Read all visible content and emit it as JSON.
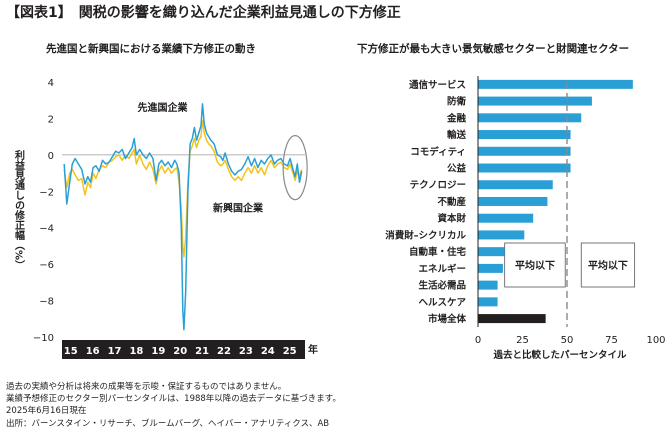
{
  "figure_title": "【図表1】　関税の影響を織り込んだ企業利益見通しの下方修正",
  "footnotes": [
    "過去の実績や分析は将来の成果等を示唆・保証するものではありません。",
    "業績予想修正のセクター別パーセンタイルは、1988年以降の過去データに基づきます。",
    "2025年6月16日現在",
    "出所：バーンスタイン・リサーチ、ブルームバーグ、ヘイバー・アナリティクス、AB"
  ],
  "colors": {
    "developed": "#2a9fd6",
    "emerging": "#f5c21a",
    "bar": "#2a9fd6",
    "bar_total": "#231f20",
    "axis_band": "#231f20",
    "ellipse": "#8a8a8a"
  },
  "chart_data": [
    {
      "type": "line",
      "title": "先進国と新興国における業績下方修正の動き",
      "ylabel": "利益見通しの修正幅（%）",
      "xlabel": "年",
      "ylim": [
        -10,
        4
      ],
      "yticks": [
        "4",
        "2",
        "0",
        "−2",
        "−4",
        "−6",
        "−8",
        "−10"
      ],
      "xlim": [
        2014.7,
        2025.8
      ],
      "x_tick_labels": [
        "15",
        "16",
        "17",
        "18",
        "19",
        "20",
        "21",
        "22",
        "23",
        "24",
        "25"
      ],
      "series": [
        {
          "name": "先進国企業",
          "color_key": "developed",
          "points": [
            [
              2014.8,
              -0.5
            ],
            [
              2014.92,
              -2.7
            ],
            [
              2015.05,
              -1.5
            ],
            [
              2015.17,
              -0.5
            ],
            [
              2015.3,
              -0.2
            ],
            [
              2015.45,
              -0.5
            ],
            [
              2015.6,
              -0.8
            ],
            [
              2015.75,
              -1.6
            ],
            [
              2015.88,
              -1.2
            ],
            [
              2016.0,
              -1.5
            ],
            [
              2016.12,
              -0.7
            ],
            [
              2016.25,
              -0.6
            ],
            [
              2016.4,
              -0.9
            ],
            [
              2016.55,
              -0.3
            ],
            [
              2016.7,
              -0.5
            ],
            [
              2016.85,
              -0.4
            ],
            [
              2017.0,
              -0.1
            ],
            [
              2017.15,
              0.2
            ],
            [
              2017.3,
              0.1
            ],
            [
              2017.45,
              0.3
            ],
            [
              2017.6,
              -0.2
            ],
            [
              2017.75,
              0.1
            ],
            [
              2017.9,
              0.4
            ],
            [
              2018.0,
              0.9
            ],
            [
              2018.1,
              0.0
            ],
            [
              2018.25,
              0.3
            ],
            [
              2018.4,
              0.0
            ],
            [
              2018.55,
              -0.2
            ],
            [
              2018.7,
              0.1
            ],
            [
              2018.85,
              -0.2
            ],
            [
              2019.0,
              -1.4
            ],
            [
              2019.12,
              -0.5
            ],
            [
              2019.25,
              -0.3
            ],
            [
              2019.4,
              -0.6
            ],
            [
              2019.55,
              -0.4
            ],
            [
              2019.7,
              -0.7
            ],
            [
              2019.85,
              -0.3
            ],
            [
              2019.95,
              -0.5
            ],
            [
              2020.05,
              -1.0
            ],
            [
              2020.15,
              -4.0
            ],
            [
              2020.22,
              -8.5
            ],
            [
              2020.27,
              -9.6
            ],
            [
              2020.35,
              -7.5
            ],
            [
              2020.45,
              -2.0
            ],
            [
              2020.55,
              0.6
            ],
            [
              2020.65,
              0.9
            ],
            [
              2020.75,
              1.5
            ],
            [
              2020.85,
              0.8
            ],
            [
              2020.95,
              1.2
            ],
            [
              2021.05,
              1.6
            ],
            [
              2021.12,
              2.8
            ],
            [
              2021.2,
              1.7
            ],
            [
              2021.3,
              1.2
            ],
            [
              2021.4,
              1.0
            ],
            [
              2021.5,
              0.8
            ],
            [
              2021.65,
              0.6
            ],
            [
              2021.8,
              0.0
            ],
            [
              2021.95,
              -0.1
            ],
            [
              2022.05,
              -0.3
            ],
            [
              2022.15,
              0.1
            ],
            [
              2022.3,
              -0.5
            ],
            [
              2022.45,
              -0.9
            ],
            [
              2022.6,
              -1.1
            ],
            [
              2022.75,
              -0.9
            ],
            [
              2022.9,
              -0.8
            ],
            [
              2023.05,
              -0.5
            ],
            [
              2023.2,
              -0.1
            ],
            [
              2023.35,
              -0.6
            ],
            [
              2023.5,
              -0.2
            ],
            [
              2023.65,
              -0.7
            ],
            [
              2023.8,
              -0.3
            ],
            [
              2023.95,
              -0.5
            ],
            [
              2024.1,
              -0.2
            ],
            [
              2024.25,
              0.0
            ],
            [
              2024.4,
              -0.5
            ],
            [
              2024.55,
              -0.3
            ],
            [
              2024.7,
              -0.2
            ],
            [
              2024.85,
              -0.5
            ],
            [
              2025.0,
              -0.6
            ],
            [
              2025.12,
              -0.2
            ],
            [
              2025.25,
              -0.8
            ],
            [
              2025.35,
              -1.2
            ],
            [
              2025.45,
              -0.5
            ],
            [
              2025.55,
              -1.5
            ],
            [
              2025.65,
              -0.9
            ]
          ]
        },
        {
          "name": "新興国企業",
          "color_key": "emerging",
          "points": [
            [
              2014.8,
              -0.8
            ],
            [
              2014.92,
              -1.8
            ],
            [
              2015.05,
              -1.0
            ],
            [
              2015.17,
              -0.8
            ],
            [
              2015.3,
              -1.1
            ],
            [
              2015.45,
              -1.4
            ],
            [
              2015.6,
              -1.3
            ],
            [
              2015.75,
              -2.2
            ],
            [
              2015.88,
              -1.5
            ],
            [
              2016.0,
              -1.8
            ],
            [
              2016.12,
              -1.0
            ],
            [
              2016.25,
              -1.3
            ],
            [
              2016.4,
              -0.8
            ],
            [
              2016.55,
              -0.6
            ],
            [
              2016.7,
              -0.7
            ],
            [
              2016.85,
              -0.4
            ],
            [
              2017.0,
              -0.3
            ],
            [
              2017.15,
              -0.1
            ],
            [
              2017.3,
              0.0
            ],
            [
              2017.45,
              -0.3
            ],
            [
              2017.6,
              0.0
            ],
            [
              2017.75,
              -0.2
            ],
            [
              2017.9,
              0.1
            ],
            [
              2018.0,
              0.3
            ],
            [
              2018.1,
              -0.5
            ],
            [
              2018.25,
              0.0
            ],
            [
              2018.4,
              -0.5
            ],
            [
              2018.55,
              -0.8
            ],
            [
              2018.7,
              -0.4
            ],
            [
              2018.85,
              -0.8
            ],
            [
              2019.0,
              -1.6
            ],
            [
              2019.12,
              -0.9
            ],
            [
              2019.25,
              -0.6
            ],
            [
              2019.4,
              -1.0
            ],
            [
              2019.55,
              -0.7
            ],
            [
              2019.7,
              -1.0
            ],
            [
              2019.85,
              -0.8
            ],
            [
              2019.95,
              -0.7
            ],
            [
              2020.05,
              -1.5
            ],
            [
              2020.15,
              -3.0
            ],
            [
              2020.22,
              -5.0
            ],
            [
              2020.27,
              -5.6
            ],
            [
              2020.35,
              -4.5
            ],
            [
              2020.45,
              -1.5
            ],
            [
              2020.55,
              0.2
            ],
            [
              2020.65,
              0.5
            ],
            [
              2020.75,
              0.9
            ],
            [
              2020.85,
              0.4
            ],
            [
              2020.95,
              0.8
            ],
            [
              2021.05,
              1.0
            ],
            [
              2021.12,
              1.9
            ],
            [
              2021.2,
              1.2
            ],
            [
              2021.3,
              0.8
            ],
            [
              2021.4,
              0.6
            ],
            [
              2021.5,
              0.5
            ],
            [
              2021.65,
              0.2
            ],
            [
              2021.8,
              -0.4
            ],
            [
              2021.95,
              -0.6
            ],
            [
              2022.05,
              -0.5
            ],
            [
              2022.15,
              -0.3
            ],
            [
              2022.3,
              -0.8
            ],
            [
              2022.45,
              -1.2
            ],
            [
              2022.6,
              -1.4
            ],
            [
              2022.75,
              -1.2
            ],
            [
              2022.9,
              -1.4
            ],
            [
              2023.05,
              -1.0
            ],
            [
              2023.2,
              -0.7
            ],
            [
              2023.35,
              -1.0
            ],
            [
              2023.5,
              -0.6
            ],
            [
              2023.65,
              -1.0
            ],
            [
              2023.8,
              -0.7
            ],
            [
              2023.95,
              -1.1
            ],
            [
              2024.1,
              -0.6
            ],
            [
              2024.25,
              -0.3
            ],
            [
              2024.4,
              -0.7
            ],
            [
              2024.55,
              -0.5
            ],
            [
              2024.7,
              -0.4
            ],
            [
              2024.85,
              -0.7
            ],
            [
              2025.0,
              -0.8
            ],
            [
              2025.12,
              -0.5
            ],
            [
              2025.25,
              -1.0
            ],
            [
              2025.35,
              -1.4
            ],
            [
              2025.45,
              -0.9
            ],
            [
              2025.55,
              -1.2
            ],
            [
              2025.65,
              -0.8
            ]
          ]
        }
      ],
      "annotations": [
        {
          "text": "先進国企業",
          "series": 0
        },
        {
          "text": "新興国企業",
          "series": 1
        }
      ],
      "highlight": "ellipse around latest values (2025)"
    },
    {
      "type": "bar",
      "orientation": "horizontal",
      "title": "下方修正が最も大きい景気敏感セクターと財関連セクター",
      "xlabel": "過去と比較したパーセンタイル",
      "xlim": [
        0,
        100
      ],
      "xticks": [
        0,
        25,
        50,
        75,
        100
      ],
      "reference_line": 50,
      "categories": [
        "通信サービス",
        "防衛",
        "金融",
        "輸送",
        "コモディティ",
        "公益",
        "テクノロジー",
        "不動産",
        "資本財",
        "消費財–シクリカル",
        "自動車・住宅",
        "エネルギー",
        "生活必需品",
        "ヘルスケア",
        "市場全体"
      ],
      "values": [
        87,
        64,
        58,
        52,
        52,
        52,
        42,
        39,
        31,
        26,
        15,
        14,
        11,
        11,
        38
      ],
      "total_index": 14,
      "boxes": [
        {
          "label": "平均以下",
          "x_range": [
            15,
            49
          ]
        },
        {
          "label": "平均以下",
          "x_range": [
            58,
            88
          ]
        }
      ]
    }
  ]
}
